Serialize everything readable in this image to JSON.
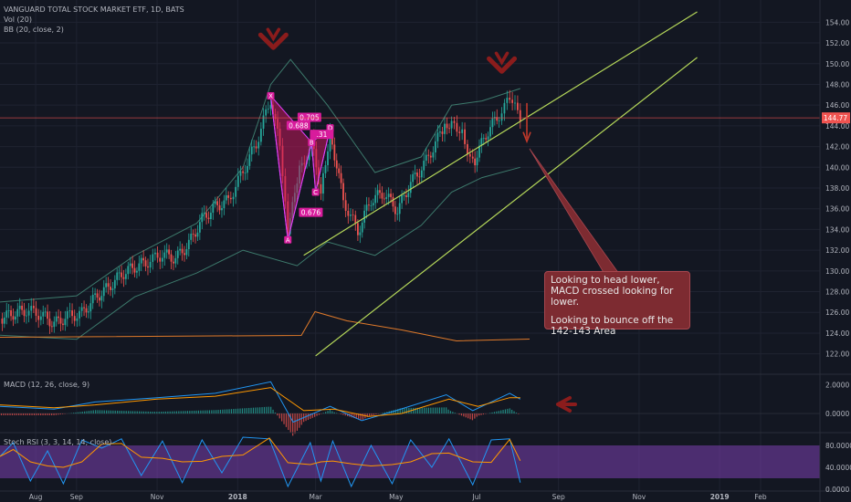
{
  "header": {
    "title": "VANGUARD TOTAL STOCK MARKET ETF, 1D, BATS",
    "vol_label": "Vol (20)",
    "bb_label": "BB (20, close, 2)"
  },
  "panes": {
    "macd_label": "MACD (12, 26, close, 9)",
    "stoch_label": "Stoch RSI (3, 3, 14, 14, close)"
  },
  "annotation": {
    "line1": "Looking to head lower, MACD crossed looking for lower.",
    "line2": "Looking to bounce off the 142-143 Area"
  },
  "harmonic": {
    "points": [
      "X",
      "A",
      "B",
      "C",
      "D"
    ],
    "ratios": [
      "0.705",
      "0.688",
      "0.676",
      ".31"
    ]
  },
  "price_tag": "144.77",
  "chart_data": {
    "type": "candlestick",
    "y_ticks": [
      "154.00",
      "152.00",
      "150.00",
      "148.00",
      "146.00",
      "144.00",
      "142.00",
      "140.00",
      "138.00",
      "136.00",
      "134.00",
      "132.00",
      "130.00",
      "128.00",
      "126.00",
      "124.00",
      "122.00"
    ],
    "x_ticks": [
      "Aug",
      "Sep",
      "Nov",
      "2018",
      "Mar",
      "May",
      "Jul",
      "Sep",
      "Nov",
      "2019",
      "Feb"
    ],
    "macd_ticks": [
      "2.0000",
      "0.0000"
    ],
    "stoch_ticks": [
      "80.0000",
      "40.0000",
      "0.0000"
    ],
    "ylim": [
      121,
      155
    ],
    "last_price": 144.77,
    "close_points": [
      {
        "d": "2017-07-05",
        "v": 125.4
      },
      {
        "d": "2017-07-15",
        "v": 125.9
      },
      {
        "d": "2017-07-25",
        "v": 126.2
      },
      {
        "d": "2017-08-05",
        "v": 125.8
      },
      {
        "d": "2017-08-15",
        "v": 124.9
      },
      {
        "d": "2017-08-25",
        "v": 125.6
      },
      {
        "d": "2017-09-05",
        "v": 125.9
      },
      {
        "d": "2017-09-15",
        "v": 127.4
      },
      {
        "d": "2017-09-25",
        "v": 128.4
      },
      {
        "d": "2017-10-05",
        "v": 129.7
      },
      {
        "d": "2017-10-15",
        "v": 130.4
      },
      {
        "d": "2017-10-25",
        "v": 130.9
      },
      {
        "d": "2017-11-05",
        "v": 131.6
      },
      {
        "d": "2017-11-15",
        "v": 131.2
      },
      {
        "d": "2017-11-25",
        "v": 132.6
      },
      {
        "d": "2017-12-05",
        "v": 135.0
      },
      {
        "d": "2017-12-15",
        "v": 136.2
      },
      {
        "d": "2017-12-25",
        "v": 136.8
      },
      {
        "d": "2018-01-05",
        "v": 139.6
      },
      {
        "d": "2018-01-15",
        "v": 142.3
      },
      {
        "d": "2018-01-26",
        "v": 146.6
      },
      {
        "d": "2018-02-02",
        "v": 142.0
      },
      {
        "d": "2018-02-08",
        "v": 133.2
      },
      {
        "d": "2018-02-15",
        "v": 139.0
      },
      {
        "d": "2018-02-26",
        "v": 142.4
      },
      {
        "d": "2018-03-05",
        "v": 137.8
      },
      {
        "d": "2018-03-12",
        "v": 143.5
      },
      {
        "d": "2018-03-22",
        "v": 136.8
      },
      {
        "d": "2018-04-02",
        "v": 133.8
      },
      {
        "d": "2018-04-12",
        "v": 136.9
      },
      {
        "d": "2018-04-22",
        "v": 137.5
      },
      {
        "d": "2018-05-02",
        "v": 135.8
      },
      {
        "d": "2018-05-12",
        "v": 138.5
      },
      {
        "d": "2018-05-22",
        "v": 140.2
      },
      {
        "d": "2018-06-05",
        "v": 143.6
      },
      {
        "d": "2018-06-12",
        "v": 144.6
      },
      {
        "d": "2018-06-20",
        "v": 143.4
      },
      {
        "d": "2018-06-28",
        "v": 140.3
      },
      {
        "d": "2018-07-08",
        "v": 143.2
      },
      {
        "d": "2018-07-18",
        "v": 145.1
      },
      {
        "d": "2018-07-26",
        "v": 146.5
      },
      {
        "d": "2018-08-03",
        "v": 144.77
      }
    ],
    "bands": {
      "upper": [
        {
          "d": "2017-07-05",
          "v": 127.0
        },
        {
          "d": "2017-09-01",
          "v": 127.6
        },
        {
          "d": "2017-10-15",
          "v": 131.5
        },
        {
          "d": "2017-12-01",
          "v": 134.6
        },
        {
          "d": "2018-01-05",
          "v": 140.0
        },
        {
          "d": "2018-01-26",
          "v": 148.0
        },
        {
          "d": "2018-02-10",
          "v": 150.4
        },
        {
          "d": "2018-03-10",
          "v": 146.0
        },
        {
          "d": "2018-04-15",
          "v": 139.5
        },
        {
          "d": "2018-05-20",
          "v": 141.0
        },
        {
          "d": "2018-06-12",
          "v": 146.0
        },
        {
          "d": "2018-07-05",
          "v": 146.4
        },
        {
          "d": "2018-08-03",
          "v": 147.6
        }
      ],
      "lower": [
        {
          "d": "2017-07-05",
          "v": 123.8
        },
        {
          "d": "2017-09-01",
          "v": 123.4
        },
        {
          "d": "2017-10-15",
          "v": 127.5
        },
        {
          "d": "2017-12-01",
          "v": 129.8
        },
        {
          "d": "2018-01-05",
          "v": 132.0
        },
        {
          "d": "2018-02-15",
          "v": 130.5
        },
        {
          "d": "2018-03-10",
          "v": 132.8
        },
        {
          "d": "2018-04-15",
          "v": 131.5
        },
        {
          "d": "2018-05-20",
          "v": 134.4
        },
        {
          "d": "2018-06-12",
          "v": 137.6
        },
        {
          "d": "2018-07-05",
          "v": 139.0
        },
        {
          "d": "2018-08-03",
          "v": 140.0
        }
      ]
    },
    "channel": {
      "upper": [
        {
          "d": "2018-02-20",
          "v": 131.5
        },
        {
          "d": "2018-12-15",
          "v": 155.0
        }
      ],
      "lower": [
        {
          "d": "2018-03-01",
          "v": 121.8
        },
        {
          "d": "2018-12-15",
          "v": 150.6
        }
      ]
    },
    "harmonic_points": [
      {
        "label": "X",
        "d": "2018-01-26",
        "v": 146.9
      },
      {
        "label": "A",
        "d": "2018-02-08",
        "v": 133.0
      },
      {
        "label": "B",
        "d": "2018-02-26",
        "v": 142.4
      },
      {
        "label": "C",
        "d": "2018-03-01",
        "v": 137.6
      },
      {
        "label": "D",
        "d": "2018-03-12",
        "v": 143.8
      }
    ],
    "macd": {
      "ylim": [
        -1.2,
        2.6
      ],
      "macd_line": [
        {
          "d": "2017-07-05",
          "v": 0.5
        },
        {
          "d": "2017-08-15",
          "v": 0.3
        },
        {
          "d": "2017-09-15",
          "v": 0.8
        },
        {
          "d": "2017-11-01",
          "v": 1.1
        },
        {
          "d": "2017-12-15",
          "v": 1.4
        },
        {
          "d": "2018-01-26",
          "v": 2.2
        },
        {
          "d": "2018-02-12",
          "v": -0.6
        },
        {
          "d": "2018-03-12",
          "v": 0.5
        },
        {
          "d": "2018-04-05",
          "v": -0.5
        },
        {
          "d": "2018-05-01",
          "v": 0.2
        },
        {
          "d": "2018-06-08",
          "v": 1.3
        },
        {
          "d": "2018-06-28",
          "v": 0.2
        },
        {
          "d": "2018-07-26",
          "v": 1.4
        },
        {
          "d": "2018-08-03",
          "v": 1.0
        }
      ],
      "signal_line": [
        {
          "d": "2017-07-05",
          "v": 0.6
        },
        {
          "d": "2017-08-15",
          "v": 0.4
        },
        {
          "d": "2017-09-15",
          "v": 0.6
        },
        {
          "d": "2017-11-01",
          "v": 1.0
        },
        {
          "d": "2017-12-15",
          "v": 1.2
        },
        {
          "d": "2018-01-26",
          "v": 1.8
        },
        {
          "d": "2018-02-20",
          "v": 0.2
        },
        {
          "d": "2018-03-15",
          "v": 0.3
        },
        {
          "d": "2018-04-10",
          "v": -0.2
        },
        {
          "d": "2018-05-05",
          "v": 0.0
        },
        {
          "d": "2018-06-10",
          "v": 1.0
        },
        {
          "d": "2018-07-02",
          "v": 0.5
        },
        {
          "d": "2018-07-26",
          "v": 1.1
        },
        {
          "d": "2018-08-03",
          "v": 1.1
        }
      ]
    },
    "stoch": {
      "ylim": [
        0,
        100
      ],
      "band": [
        20,
        80
      ],
      "k_line": [
        {
          "d": "2017-07-05",
          "v": 60
        },
        {
          "d": "2017-07-15",
          "v": 85
        },
        {
          "d": "2017-07-28",
          "v": 15
        },
        {
          "d": "2017-08-10",
          "v": 70
        },
        {
          "d": "2017-08-22",
          "v": 10
        },
        {
          "d": "2017-09-05",
          "v": 90
        },
        {
          "d": "2017-09-20",
          "v": 75
        },
        {
          "d": "2017-10-05",
          "v": 92
        },
        {
          "d": "2017-10-20",
          "v": 25
        },
        {
          "d": "2017-11-05",
          "v": 88
        },
        {
          "d": "2017-11-20",
          "v": 12
        },
        {
          "d": "2017-12-05",
          "v": 90
        },
        {
          "d": "2017-12-20",
          "v": 30
        },
        {
          "d": "2018-01-05",
          "v": 95
        },
        {
          "d": "2018-01-25",
          "v": 92
        },
        {
          "d": "2018-02-08",
          "v": 5
        },
        {
          "d": "2018-02-25",
          "v": 85
        },
        {
          "d": "2018-03-05",
          "v": 15
        },
        {
          "d": "2018-03-14",
          "v": 88
        },
        {
          "d": "2018-03-28",
          "v": 5
        },
        {
          "d": "2018-04-12",
          "v": 80
        },
        {
          "d": "2018-04-28",
          "v": 10
        },
        {
          "d": "2018-05-12",
          "v": 90
        },
        {
          "d": "2018-05-28",
          "v": 40
        },
        {
          "d": "2018-06-10",
          "v": 92
        },
        {
          "d": "2018-06-28",
          "v": 8
        },
        {
          "d": "2018-07-12",
          "v": 90
        },
        {
          "d": "2018-07-26",
          "v": 92
        },
        {
          "d": "2018-08-03",
          "v": 12
        }
      ]
    }
  }
}
